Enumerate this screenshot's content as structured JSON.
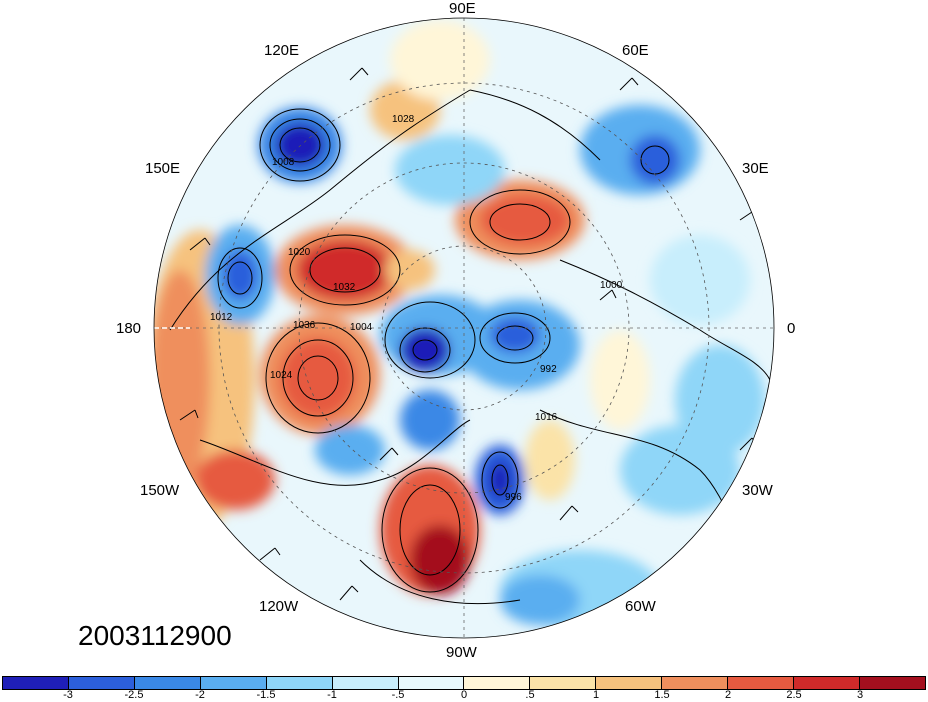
{
  "map": {
    "projection": "north-polar-stereographic",
    "longitude_labels": [
      {
        "text": "90E"
      },
      {
        "text": "60E"
      },
      {
        "text": "30E"
      },
      {
        "text": "0"
      },
      {
        "text": "30W"
      },
      {
        "text": "60W"
      },
      {
        "text": "90W"
      },
      {
        "text": "120W"
      },
      {
        "text": "150W"
      },
      {
        "text": "180"
      },
      {
        "text": "150E"
      },
      {
        "text": "120E"
      }
    ],
    "contour_labels": [
      "1028",
      "1032",
      "1036",
      "1024",
      "1020",
      "1016",
      "1012",
      "1008",
      "1004",
      "1000",
      "996",
      "992"
    ]
  },
  "timestamp": "2003112900",
  "colorbar": {
    "colors": [
      "#1f1fb8",
      "#2c5fdb",
      "#3a88e6",
      "#5aaef0",
      "#8fd6f8",
      "#c8eefc",
      "#e8f9fd",
      "#fff6d8",
      "#fbe3a8",
      "#f6c27e",
      "#ef8f5d",
      "#e65a40",
      "#d02a2a",
      "#a40f1e"
    ],
    "labels": [
      "-3",
      "-2.5",
      "-2",
      "-1.5",
      "-1",
      "-.5",
      "0",
      ".5",
      "1",
      "1.5",
      "2",
      "2.5",
      "3"
    ]
  }
}
